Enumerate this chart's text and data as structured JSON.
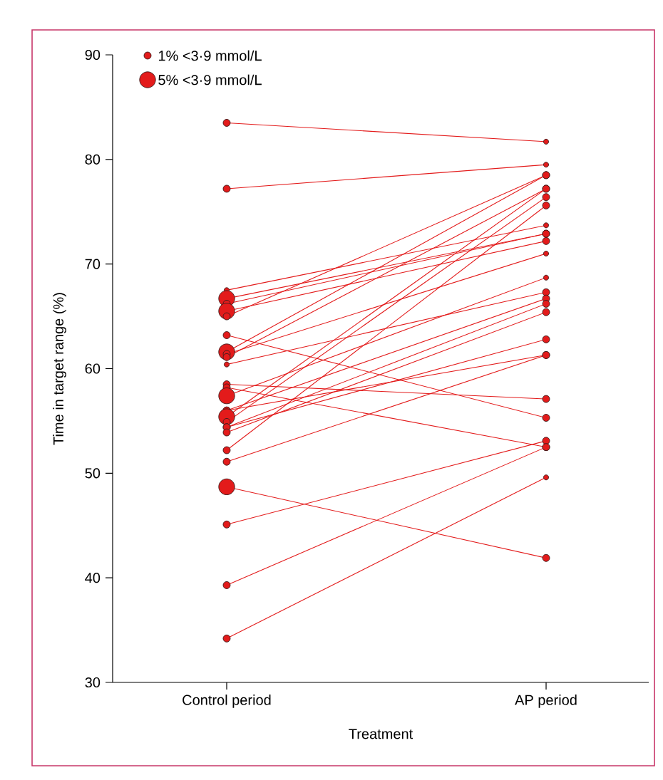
{
  "chart_data": {
    "type": "bubble",
    "xlabel": "Treatment",
    "ylabel": "Time in target range (%)",
    "categories": [
      "Control period",
      "AP period"
    ],
    "ylim": [
      30,
      90
    ],
    "yticks": [
      30,
      40,
      50,
      60,
      70,
      80,
      90
    ],
    "color": "#e31b1b",
    "size_legend": [
      {
        "value": 1,
        "label": "1% <3·9 mmol/L"
      },
      {
        "value": 5,
        "label": "5% <3·9 mmol/L"
      }
    ],
    "series": [
      {
        "type": "line",
        "values": [
          83.5,
          81.7
        ]
      },
      {
        "type": "line",
        "values": [
          77.2,
          79.5
        ]
      },
      {
        "type": "line",
        "values": [
          67.5,
          73.7
        ]
      },
      {
        "type": "line",
        "values": [
          66.7,
          72.9
        ]
      },
      {
        "type": "line",
        "values": [
          66.2,
          72.9
        ]
      },
      {
        "type": "line",
        "values": [
          65.5,
          72.2
        ]
      },
      {
        "type": "line",
        "values": [
          65.0,
          78.5
        ]
      },
      {
        "type": "line",
        "values": [
          63.2,
          55.3
        ]
      },
      {
        "type": "line",
        "values": [
          61.6,
          78.5
        ]
      },
      {
        "type": "line",
        "values": [
          61.4,
          71.0
        ]
      },
      {
        "type": "line",
        "values": [
          61.1,
          77.2
        ]
      },
      {
        "type": "line",
        "values": [
          60.4,
          67.3
        ]
      },
      {
        "type": "line",
        "values": [
          58.5,
          57.1
        ]
      },
      {
        "type": "line",
        "values": [
          58.2,
          52.5
        ]
      },
      {
        "type": "line",
        "values": [
          57.4,
          68.7
        ]
      },
      {
        "type": "line",
        "values": [
          56.0,
          66.7
        ]
      },
      {
        "type": "line",
        "values": [
          56.0,
          61.3
        ]
      },
      {
        "type": "line",
        "values": [
          55.4,
          77.2
        ]
      },
      {
        "type": "line",
        "values": [
          54.9,
          76.4
        ]
      },
      {
        "type": "line",
        "values": [
          54.4,
          66.2
        ]
      },
      {
        "type": "line",
        "values": [
          54.4,
          62.8
        ]
      },
      {
        "type": "line",
        "values": [
          53.9,
          65.4
        ]
      },
      {
        "type": "line",
        "values": [
          52.2,
          75.6
        ]
      },
      {
        "type": "line",
        "values": [
          51.1,
          61.3
        ]
      },
      {
        "type": "line",
        "values": [
          48.7,
          41.9
        ]
      },
      {
        "type": "line",
        "values": [
          45.1,
          53.1
        ]
      },
      {
        "type": "line",
        "values": [
          39.3,
          52.5
        ]
      },
      {
        "type": "line",
        "values": [
          34.2,
          49.6
        ]
      },
      {
        "values": [
          83.5,
          81.7
        ],
        "sizes": [
          1,
          0.5
        ]
      },
      {
        "values": [
          77.2,
          79.5
        ],
        "sizes": [
          1,
          0.5
        ]
      },
      {
        "values": [
          67.5,
          73.7
        ],
        "sizes": [
          0.5,
          0.5
        ]
      },
      {
        "values": [
          66.7,
          72.9
        ],
        "sizes": [
          5,
          1
        ]
      },
      {
        "values": [
          66.2,
          72.9
        ],
        "sizes": [
          1,
          1
        ]
      },
      {
        "values": [
          65.5,
          72.2
        ],
        "sizes": [
          5,
          1
        ]
      },
      {
        "values": [
          65.0,
          78.5
        ],
        "sizes": [
          1,
          1
        ]
      },
      {
        "values": [
          63.2,
          55.3
        ],
        "sizes": [
          1,
          1
        ]
      },
      {
        "values": [
          61.6,
          78.5
        ],
        "sizes": [
          5,
          1
        ]
      },
      {
        "values": [
          61.4,
          71.0
        ],
        "sizes": [
          1,
          0.5
        ]
      },
      {
        "values": [
          61.1,
          77.2
        ],
        "sizes": [
          1,
          1
        ]
      },
      {
        "values": [
          60.4,
          67.3
        ],
        "sizes": [
          0.5,
          1
        ]
      },
      {
        "values": [
          58.5,
          57.1
        ],
        "sizes": [
          1,
          1
        ]
      },
      {
        "values": [
          58.2,
          52.5
        ],
        "sizes": [
          1,
          1
        ]
      },
      {
        "values": [
          57.4,
          68.7
        ],
        "sizes": [
          5,
          0.5
        ]
      },
      {
        "values": [
          56.0,
          66.7
        ],
        "sizes": [
          1,
          1
        ]
      },
      {
        "values": [
          56.0,
          61.3
        ],
        "sizes": [
          1,
          1
        ]
      },
      {
        "values": [
          55.4,
          77.2
        ],
        "sizes": [
          5,
          1
        ]
      },
      {
        "values": [
          54.9,
          76.4
        ],
        "sizes": [
          1,
          1
        ]
      },
      {
        "values": [
          54.4,
          66.2
        ],
        "sizes": [
          1,
          1
        ]
      },
      {
        "values": [
          54.4,
          62.8
        ],
        "sizes": [
          1,
          1
        ]
      },
      {
        "values": [
          53.9,
          65.4
        ],
        "sizes": [
          1,
          1
        ]
      },
      {
        "values": [
          52.2,
          75.6
        ],
        "sizes": [
          1,
          1
        ]
      },
      {
        "values": [
          51.1,
          61.3
        ],
        "sizes": [
          1,
          1
        ]
      },
      {
        "values": [
          48.7,
          41.9
        ],
        "sizes": [
          5,
          1
        ]
      },
      {
        "values": [
          45.1,
          53.1
        ],
        "sizes": [
          1,
          1
        ]
      },
      {
        "values": [
          39.3,
          52.5
        ],
        "sizes": [
          1,
          1
        ]
      },
      {
        "values": [
          34.2,
          49.6
        ],
        "sizes": [
          1,
          0.5
        ]
      }
    ]
  }
}
